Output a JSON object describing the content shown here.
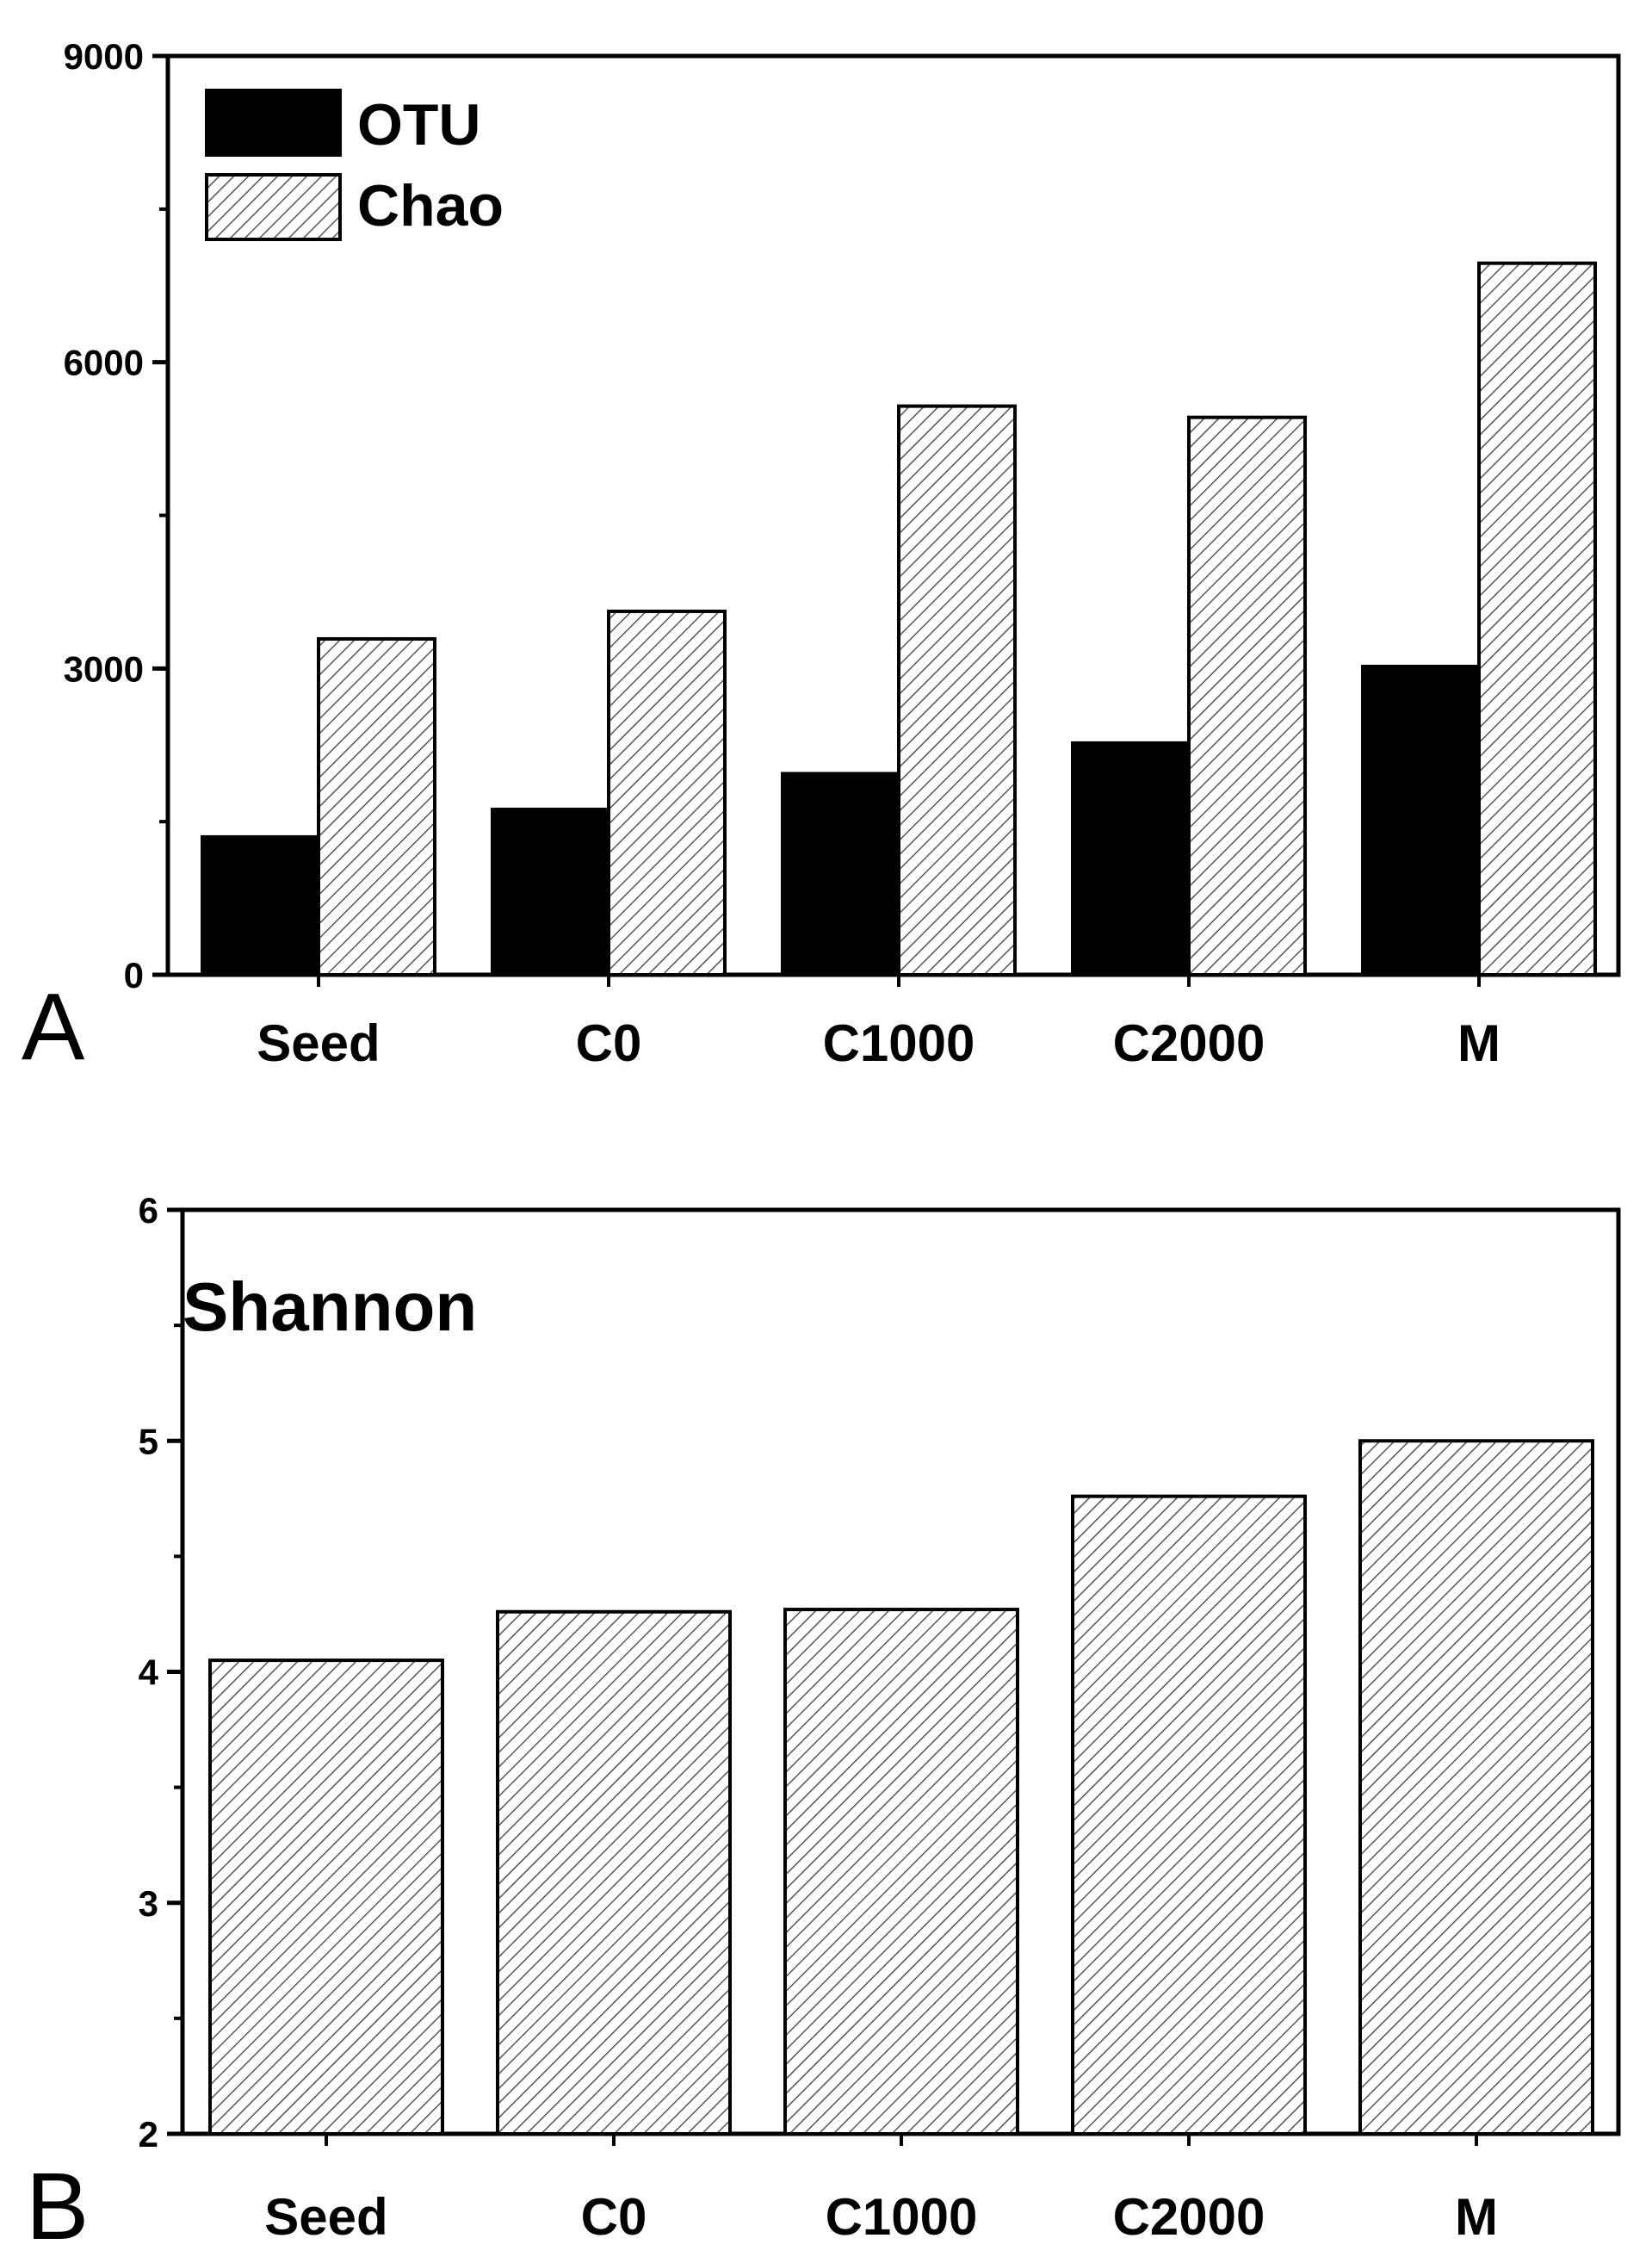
{
  "chart_data": [
    {
      "type": "bar",
      "panel_label": "A",
      "categories": [
        "Seed",
        "C0",
        "C1000",
        "C2000",
        "M"
      ],
      "series": [
        {
          "name": "OTU",
          "values": [
            1350,
            1620,
            1970,
            2270,
            3020
          ],
          "color": "#000000",
          "pattern": "solid"
        },
        {
          "name": "Chao",
          "values": [
            3290,
            3560,
            5570,
            5460,
            6970
          ],
          "color": "#ffffff",
          "pattern": "hatch"
        }
      ],
      "yticks": [
        "0",
        "3000",
        "6000",
        "9000"
      ],
      "ylim": [
        0,
        9000
      ],
      "legend_position": "top-left",
      "title": "",
      "xlabel": "",
      "ylabel": ""
    },
    {
      "type": "bar",
      "panel_label": "B",
      "categories": [
        "Seed",
        "C0",
        "C1000",
        "C2000",
        "M"
      ],
      "series": [
        {
          "name": "Shannon",
          "values": [
            4.05,
            4.26,
            4.27,
            4.76,
            5.0
          ],
          "color": "#ffffff",
          "pattern": "hatch"
        }
      ],
      "yticks": [
        "2",
        "3",
        "4",
        "5",
        "6"
      ],
      "ylim": [
        2,
        6
      ],
      "annotation": "Shannon",
      "title": "",
      "xlabel": "",
      "ylabel": ""
    }
  ]
}
